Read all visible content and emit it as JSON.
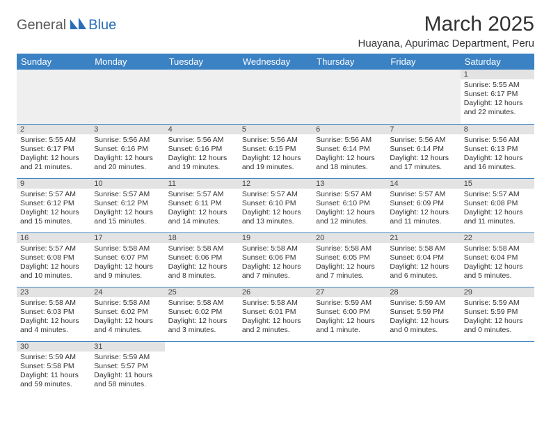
{
  "brand": {
    "part1": "General",
    "part2": "Blue"
  },
  "title": "March 2025",
  "location": "Huayana, Apurimac Department, Peru",
  "colors": {
    "header_bg": "#3b82c4",
    "header_fg": "#ffffff",
    "daynum_bg": "#e3e3e3",
    "row_border": "#3b82c4",
    "blank_bg": "#efefef",
    "brand_accent": "#2a6db8"
  },
  "weekdays": [
    "Sunday",
    "Monday",
    "Tuesday",
    "Wednesday",
    "Thursday",
    "Friday",
    "Saturday"
  ],
  "weeks": [
    [
      null,
      null,
      null,
      null,
      null,
      null,
      {
        "n": "1",
        "sr": "Sunrise: 5:55 AM",
        "ss": "Sunset: 6:17 PM",
        "d1": "Daylight: 12 hours",
        "d2": "and 22 minutes."
      }
    ],
    [
      {
        "n": "2",
        "sr": "Sunrise: 5:55 AM",
        "ss": "Sunset: 6:17 PM",
        "d1": "Daylight: 12 hours",
        "d2": "and 21 minutes."
      },
      {
        "n": "3",
        "sr": "Sunrise: 5:56 AM",
        "ss": "Sunset: 6:16 PM",
        "d1": "Daylight: 12 hours",
        "d2": "and 20 minutes."
      },
      {
        "n": "4",
        "sr": "Sunrise: 5:56 AM",
        "ss": "Sunset: 6:16 PM",
        "d1": "Daylight: 12 hours",
        "d2": "and 19 minutes."
      },
      {
        "n": "5",
        "sr": "Sunrise: 5:56 AM",
        "ss": "Sunset: 6:15 PM",
        "d1": "Daylight: 12 hours",
        "d2": "and 19 minutes."
      },
      {
        "n": "6",
        "sr": "Sunrise: 5:56 AM",
        "ss": "Sunset: 6:14 PM",
        "d1": "Daylight: 12 hours",
        "d2": "and 18 minutes."
      },
      {
        "n": "7",
        "sr": "Sunrise: 5:56 AM",
        "ss": "Sunset: 6:14 PM",
        "d1": "Daylight: 12 hours",
        "d2": "and 17 minutes."
      },
      {
        "n": "8",
        "sr": "Sunrise: 5:56 AM",
        "ss": "Sunset: 6:13 PM",
        "d1": "Daylight: 12 hours",
        "d2": "and 16 minutes."
      }
    ],
    [
      {
        "n": "9",
        "sr": "Sunrise: 5:57 AM",
        "ss": "Sunset: 6:12 PM",
        "d1": "Daylight: 12 hours",
        "d2": "and 15 minutes."
      },
      {
        "n": "10",
        "sr": "Sunrise: 5:57 AM",
        "ss": "Sunset: 6:12 PM",
        "d1": "Daylight: 12 hours",
        "d2": "and 15 minutes."
      },
      {
        "n": "11",
        "sr": "Sunrise: 5:57 AM",
        "ss": "Sunset: 6:11 PM",
        "d1": "Daylight: 12 hours",
        "d2": "and 14 minutes."
      },
      {
        "n": "12",
        "sr": "Sunrise: 5:57 AM",
        "ss": "Sunset: 6:10 PM",
        "d1": "Daylight: 12 hours",
        "d2": "and 13 minutes."
      },
      {
        "n": "13",
        "sr": "Sunrise: 5:57 AM",
        "ss": "Sunset: 6:10 PM",
        "d1": "Daylight: 12 hours",
        "d2": "and 12 minutes."
      },
      {
        "n": "14",
        "sr": "Sunrise: 5:57 AM",
        "ss": "Sunset: 6:09 PM",
        "d1": "Daylight: 12 hours",
        "d2": "and 11 minutes."
      },
      {
        "n": "15",
        "sr": "Sunrise: 5:57 AM",
        "ss": "Sunset: 6:08 PM",
        "d1": "Daylight: 12 hours",
        "d2": "and 11 minutes."
      }
    ],
    [
      {
        "n": "16",
        "sr": "Sunrise: 5:57 AM",
        "ss": "Sunset: 6:08 PM",
        "d1": "Daylight: 12 hours",
        "d2": "and 10 minutes."
      },
      {
        "n": "17",
        "sr": "Sunrise: 5:58 AM",
        "ss": "Sunset: 6:07 PM",
        "d1": "Daylight: 12 hours",
        "d2": "and 9 minutes."
      },
      {
        "n": "18",
        "sr": "Sunrise: 5:58 AM",
        "ss": "Sunset: 6:06 PM",
        "d1": "Daylight: 12 hours",
        "d2": "and 8 minutes."
      },
      {
        "n": "19",
        "sr": "Sunrise: 5:58 AM",
        "ss": "Sunset: 6:06 PM",
        "d1": "Daylight: 12 hours",
        "d2": "and 7 minutes."
      },
      {
        "n": "20",
        "sr": "Sunrise: 5:58 AM",
        "ss": "Sunset: 6:05 PM",
        "d1": "Daylight: 12 hours",
        "d2": "and 7 minutes."
      },
      {
        "n": "21",
        "sr": "Sunrise: 5:58 AM",
        "ss": "Sunset: 6:04 PM",
        "d1": "Daylight: 12 hours",
        "d2": "and 6 minutes."
      },
      {
        "n": "22",
        "sr": "Sunrise: 5:58 AM",
        "ss": "Sunset: 6:04 PM",
        "d1": "Daylight: 12 hours",
        "d2": "and 5 minutes."
      }
    ],
    [
      {
        "n": "23",
        "sr": "Sunrise: 5:58 AM",
        "ss": "Sunset: 6:03 PM",
        "d1": "Daylight: 12 hours",
        "d2": "and 4 minutes."
      },
      {
        "n": "24",
        "sr": "Sunrise: 5:58 AM",
        "ss": "Sunset: 6:02 PM",
        "d1": "Daylight: 12 hours",
        "d2": "and 4 minutes."
      },
      {
        "n": "25",
        "sr": "Sunrise: 5:58 AM",
        "ss": "Sunset: 6:02 PM",
        "d1": "Daylight: 12 hours",
        "d2": "and 3 minutes."
      },
      {
        "n": "26",
        "sr": "Sunrise: 5:58 AM",
        "ss": "Sunset: 6:01 PM",
        "d1": "Daylight: 12 hours",
        "d2": "and 2 minutes."
      },
      {
        "n": "27",
        "sr": "Sunrise: 5:59 AM",
        "ss": "Sunset: 6:00 PM",
        "d1": "Daylight: 12 hours",
        "d2": "and 1 minute."
      },
      {
        "n": "28",
        "sr": "Sunrise: 5:59 AM",
        "ss": "Sunset: 5:59 PM",
        "d1": "Daylight: 12 hours",
        "d2": "and 0 minutes."
      },
      {
        "n": "29",
        "sr": "Sunrise: 5:59 AM",
        "ss": "Sunset: 5:59 PM",
        "d1": "Daylight: 12 hours",
        "d2": "and 0 minutes."
      }
    ],
    [
      {
        "n": "30",
        "sr": "Sunrise: 5:59 AM",
        "ss": "Sunset: 5:58 PM",
        "d1": "Daylight: 11 hours",
        "d2": "and 59 minutes."
      },
      {
        "n": "31",
        "sr": "Sunrise: 5:59 AM",
        "ss": "Sunset: 5:57 PM",
        "d1": "Daylight: 11 hours",
        "d2": "and 58 minutes."
      },
      null,
      null,
      null,
      null,
      null
    ]
  ]
}
